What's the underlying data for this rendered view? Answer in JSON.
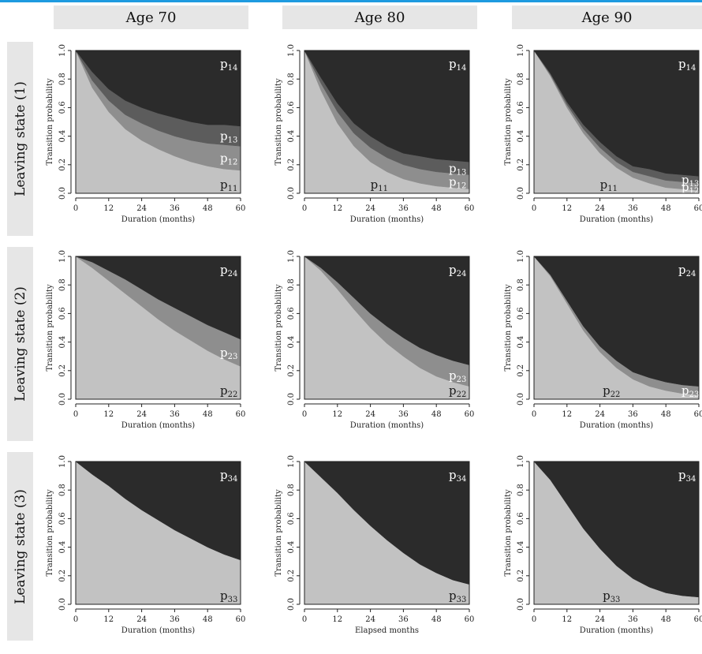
{
  "column_headers": [
    "Age 70",
    "Age 80",
    "Age 90"
  ],
  "row_headers": [
    "Leaving state (1)",
    "Leaving state (2)",
    "Leaving state (3)"
  ],
  "colors": {
    "fill_light": "#c2c2c2",
    "fill_mid": "#8e8e8e",
    "fill_midDark": "#5c5c5c",
    "fill_dark": "#2b2b2b",
    "header_bg": "#e6e6e6",
    "accent_line": "#1e9be0"
  },
  "chart_data": [
    {
      "type": "area",
      "row": 0,
      "col": 0,
      "ylabel": "Transition probability",
      "xlabel": "Duration (months)",
      "xlim": [
        0,
        60
      ],
      "ylim": [
        0,
        1
      ],
      "xticks": [
        0,
        12,
        24,
        36,
        48,
        60
      ],
      "yticks": [
        "0.0",
        "0.2",
        "0.4",
        "0.6",
        "0.8",
        "1.0"
      ],
      "x": [
        0,
        6,
        12,
        18,
        24,
        30,
        36,
        42,
        48,
        54,
        60
      ],
      "series": [
        {
          "label": "p11",
          "values": [
            1.0,
            0.74,
            0.57,
            0.45,
            0.37,
            0.31,
            0.26,
            0.22,
            0.19,
            0.17,
            0.16
          ]
        },
        {
          "label": "p12",
          "values": [
            0.0,
            0.05,
            0.08,
            0.1,
            0.12,
            0.13,
            0.14,
            0.15,
            0.16,
            0.17,
            0.17
          ]
        },
        {
          "label": "p13",
          "values": [
            0.0,
            0.06,
            0.08,
            0.1,
            0.11,
            0.12,
            0.13,
            0.13,
            0.13,
            0.14,
            0.14
          ]
        },
        {
          "label": "p14",
          "values": [
            0.0,
            0.15,
            0.27,
            0.35,
            0.4,
            0.44,
            0.47,
            0.5,
            0.52,
            0.52,
            0.53
          ]
        }
      ]
    },
    {
      "type": "area",
      "row": 0,
      "col": 1,
      "ylabel": "Transition probability",
      "xlabel": "Duration (months)",
      "xlim": [
        0,
        60
      ],
      "ylim": [
        0,
        1
      ],
      "xticks": [
        0,
        12,
        24,
        36,
        48,
        60
      ],
      "yticks": [
        "0.0",
        "0.2",
        "0.4",
        "0.6",
        "0.8",
        "1.0"
      ],
      "x": [
        0,
        6,
        12,
        18,
        24,
        30,
        36,
        42,
        48,
        54,
        60
      ],
      "series": [
        {
          "label": "p11",
          "values": [
            1.0,
            0.72,
            0.49,
            0.33,
            0.22,
            0.15,
            0.1,
            0.07,
            0.05,
            0.04,
            0.03
          ]
        },
        {
          "label": "p12",
          "values": [
            0.0,
            0.05,
            0.08,
            0.09,
            0.1,
            0.1,
            0.1,
            0.1,
            0.1,
            0.1,
            0.1
          ]
        },
        {
          "label": "p13",
          "values": [
            0.0,
            0.04,
            0.06,
            0.07,
            0.08,
            0.08,
            0.08,
            0.09,
            0.09,
            0.09,
            0.09
          ]
        },
        {
          "label": "p14",
          "values": [
            0.0,
            0.19,
            0.37,
            0.51,
            0.6,
            0.67,
            0.72,
            0.74,
            0.76,
            0.77,
            0.78
          ]
        }
      ]
    },
    {
      "type": "area",
      "row": 0,
      "col": 2,
      "ylabel": "Transition probability",
      "xlabel": "Duration (months)",
      "xlim": [
        0,
        60
      ],
      "ylim": [
        0,
        1
      ],
      "xticks": [
        0,
        12,
        24,
        36,
        48,
        60
      ],
      "yticks": [
        "0.0",
        "0.2",
        "0.4",
        "0.6",
        "0.8",
        "1.0"
      ],
      "x": [
        0,
        6,
        12,
        18,
        24,
        30,
        36,
        42,
        48,
        54,
        60
      ],
      "series": [
        {
          "label": "p11",
          "values": [
            1.0,
            0.82,
            0.6,
            0.42,
            0.28,
            0.18,
            0.11,
            0.07,
            0.04,
            0.03,
            0.02
          ]
        },
        {
          "label": "p12",
          "values": [
            0.0,
            0.01,
            0.02,
            0.03,
            0.04,
            0.04,
            0.04,
            0.05,
            0.05,
            0.05,
            0.05
          ]
        },
        {
          "label": "p13",
          "values": [
            0.0,
            0.01,
            0.02,
            0.03,
            0.04,
            0.04,
            0.04,
            0.05,
            0.05,
            0.05,
            0.05
          ]
        },
        {
          "label": "p14",
          "values": [
            0.0,
            0.16,
            0.36,
            0.52,
            0.64,
            0.74,
            0.81,
            0.83,
            0.86,
            0.87,
            0.88
          ]
        }
      ]
    },
    {
      "type": "area",
      "row": 1,
      "col": 0,
      "ylabel": "Transition probability",
      "xlabel": "Duration (months)",
      "xlim": [
        0,
        60
      ],
      "ylim": [
        0,
        1
      ],
      "xticks": [
        0,
        12,
        24,
        36,
        48,
        60
      ],
      "yticks": [
        "0.0",
        "0.2",
        "0.4",
        "0.6",
        "0.8",
        "1.0"
      ],
      "x": [
        0,
        6,
        12,
        18,
        24,
        30,
        36,
        42,
        48,
        54,
        60
      ],
      "series": [
        {
          "label": "p22",
          "values": [
            1.0,
            0.92,
            0.83,
            0.74,
            0.65,
            0.56,
            0.48,
            0.41,
            0.34,
            0.28,
            0.23
          ]
        },
        {
          "label": "p23",
          "values": [
            0.0,
            0.04,
            0.07,
            0.1,
            0.12,
            0.14,
            0.16,
            0.17,
            0.18,
            0.19,
            0.19
          ]
        },
        {
          "label": "p24",
          "values": [
            0.0,
            0.04,
            0.1,
            0.16,
            0.23,
            0.3,
            0.36,
            0.42,
            0.48,
            0.53,
            0.58
          ]
        }
      ]
    },
    {
      "type": "area",
      "row": 1,
      "col": 1,
      "ylabel": "Transition probability",
      "xlabel": "Duration (months)",
      "xlim": [
        0,
        60
      ],
      "ylim": [
        0,
        1
      ],
      "xticks": [
        0,
        12,
        24,
        36,
        48,
        60
      ],
      "yticks": [
        "0.0",
        "0.2",
        "0.4",
        "0.6",
        "0.8",
        "1.0"
      ],
      "x": [
        0,
        6,
        12,
        18,
        24,
        30,
        36,
        42,
        48,
        54,
        60
      ],
      "series": [
        {
          "label": "p22",
          "values": [
            1.0,
            0.9,
            0.77,
            0.63,
            0.5,
            0.39,
            0.3,
            0.22,
            0.16,
            0.12,
            0.09
          ]
        },
        {
          "label": "p23",
          "values": [
            0.0,
            0.02,
            0.05,
            0.08,
            0.1,
            0.12,
            0.13,
            0.14,
            0.15,
            0.15,
            0.15
          ]
        },
        {
          "label": "p24",
          "values": [
            0.0,
            0.08,
            0.18,
            0.29,
            0.4,
            0.49,
            0.57,
            0.64,
            0.69,
            0.73,
            0.76
          ]
        }
      ]
    },
    {
      "type": "area",
      "row": 1,
      "col": 2,
      "ylabel": "Transition probability",
      "xlabel": "Duration (months)",
      "xlim": [
        0,
        60
      ],
      "ylim": [
        0,
        1
      ],
      "xticks": [
        0,
        12,
        24,
        36,
        48,
        60
      ],
      "yticks": [
        "0.0",
        "0.2",
        "0.4",
        "0.6",
        "0.8",
        "1.0"
      ],
      "x": [
        0,
        6,
        12,
        18,
        24,
        30,
        36,
        42,
        48,
        54,
        60
      ],
      "series": [
        {
          "label": "p22",
          "values": [
            1.0,
            0.86,
            0.67,
            0.48,
            0.33,
            0.22,
            0.14,
            0.09,
            0.06,
            0.04,
            0.03
          ]
        },
        {
          "label": "p23",
          "values": [
            0.0,
            0.01,
            0.02,
            0.03,
            0.04,
            0.05,
            0.05,
            0.06,
            0.06,
            0.06,
            0.06
          ]
        },
        {
          "label": "p24",
          "values": [
            0.0,
            0.13,
            0.31,
            0.49,
            0.63,
            0.73,
            0.81,
            0.85,
            0.88,
            0.9,
            0.91
          ]
        }
      ]
    },
    {
      "type": "area",
      "row": 2,
      "col": 0,
      "ylabel": "Transition probability",
      "xlabel": "Duration (months)",
      "xlim": [
        0,
        60
      ],
      "ylim": [
        0,
        1
      ],
      "xticks": [
        0,
        12,
        24,
        36,
        48,
        60
      ],
      "yticks": [
        "0.0",
        "0.2",
        "0.4",
        "0.6",
        "0.8",
        "1.0"
      ],
      "x": [
        0,
        6,
        12,
        18,
        24,
        30,
        36,
        42,
        48,
        54,
        60
      ],
      "series": [
        {
          "label": "p33",
          "values": [
            1.0,
            0.91,
            0.83,
            0.74,
            0.66,
            0.59,
            0.52,
            0.46,
            0.4,
            0.35,
            0.31
          ]
        },
        {
          "label": "p34",
          "values": [
            0.0,
            0.09,
            0.17,
            0.26,
            0.34,
            0.41,
            0.48,
            0.54,
            0.6,
            0.65,
            0.69
          ]
        }
      ]
    },
    {
      "type": "area",
      "row": 2,
      "col": 1,
      "ylabel": "Transition probability",
      "xlabel": "Elapsed months",
      "xlim": [
        0,
        60
      ],
      "ylim": [
        0,
        1
      ],
      "xticks": [
        0,
        12,
        24,
        36,
        48,
        60
      ],
      "yticks": [
        "0.0",
        "0.2",
        "0.4",
        "0.6",
        "0.8",
        "1.0"
      ],
      "x": [
        0,
        6,
        12,
        18,
        24,
        30,
        36,
        42,
        48,
        54,
        60
      ],
      "series": [
        {
          "label": "p33",
          "values": [
            1.0,
            0.89,
            0.78,
            0.66,
            0.55,
            0.45,
            0.36,
            0.28,
            0.22,
            0.17,
            0.14
          ]
        },
        {
          "label": "p34",
          "values": [
            0.0,
            0.11,
            0.22,
            0.34,
            0.45,
            0.55,
            0.64,
            0.72,
            0.78,
            0.83,
            0.86
          ]
        }
      ]
    },
    {
      "type": "area",
      "row": 2,
      "col": 2,
      "ylabel": "Transition probability",
      "xlabel": "Duration (months)",
      "xlim": [
        0,
        60
      ],
      "ylim": [
        0,
        1
      ],
      "xticks": [
        0,
        12,
        24,
        36,
        48,
        60
      ],
      "yticks": [
        "0.0",
        "0.2",
        "0.4",
        "0.6",
        "0.8",
        "1.0"
      ],
      "x": [
        0,
        6,
        12,
        18,
        24,
        30,
        36,
        42,
        48,
        54,
        60
      ],
      "series": [
        {
          "label": "p33",
          "values": [
            1.0,
            0.87,
            0.7,
            0.53,
            0.39,
            0.27,
            0.18,
            0.12,
            0.08,
            0.06,
            0.05
          ]
        },
        {
          "label": "p34",
          "values": [
            0.0,
            0.13,
            0.3,
            0.47,
            0.61,
            0.73,
            0.82,
            0.88,
            0.92,
            0.94,
            0.95
          ]
        }
      ]
    }
  ]
}
